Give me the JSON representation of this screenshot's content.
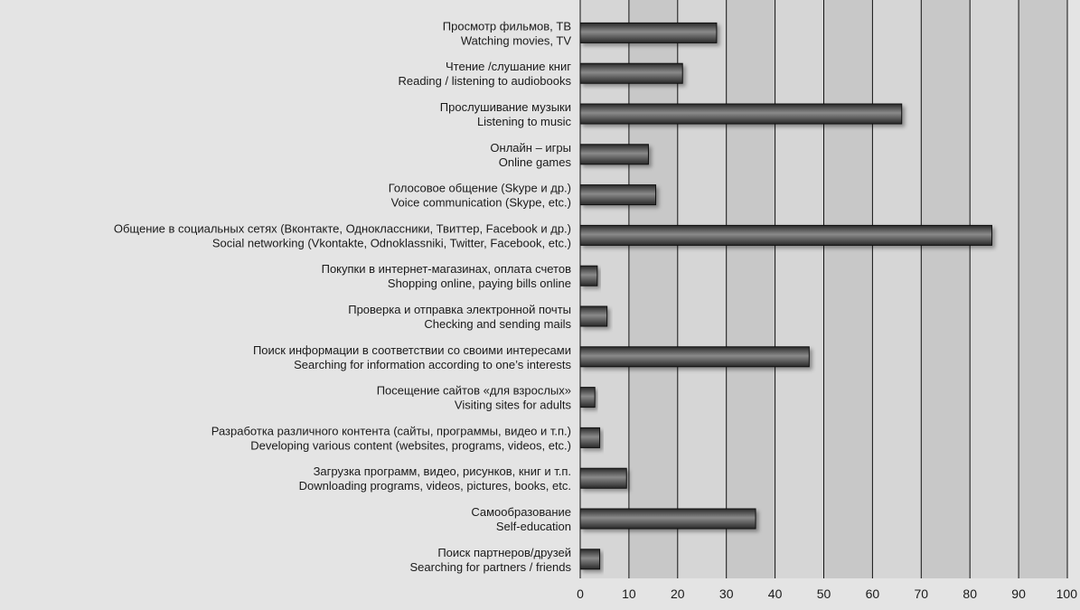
{
  "chart_data": {
    "type": "bar",
    "orientation": "horizontal",
    "categories": [
      [
        "Просмотр  фильмов, ТВ",
        "Watching movies, TV"
      ],
      [
        "Чтение /слушание книг",
        "Reading / listening to audiobooks"
      ],
      [
        "Прослушивание музыки",
        "Listening to music"
      ],
      [
        "Онлайн – игры",
        "Online games"
      ],
      [
        "Голосовое общение (Skype и др.)",
        "Voice communication (Skype, etc.)"
      ],
      [
        "Общение в социальных сетях (Вконтакте, Одноклассники, Твиттер, Facebook и др.)",
        "Social networking (Vkontakte, Odnoklassniki, Twitter, Facebook, etc.)"
      ],
      [
        "Покупки в интернет-магазинах, оплата счетов",
        "Shopping online, paying bills online"
      ],
      [
        "Проверка и отправка электронной почты",
        "Checking and sending mails"
      ],
      [
        "Поиск информации в соответствии со своими интересами",
        "Searching for information according to one’s interests"
      ],
      [
        "Посещение сайтов «для взрослых»",
        "Visiting sites for adults"
      ],
      [
        "Разработка различного контента (сайты, программы, видео и т.п.)",
        "Developing various content (websites, programs, videos, etc.)"
      ],
      [
        "Загрузка программ, видео, рисунков, книг и т.п.",
        "Downloading programs, videos, pictures, books, etc."
      ],
      [
        "Самообразование",
        "Self-education"
      ],
      [
        "Поиск партнеров/друзей",
        "Searching for partners / friends"
      ]
    ],
    "values": [
      28,
      21,
      66,
      14,
      15.5,
      84.5,
      3.5,
      5.5,
      47,
      3,
      4,
      9.5,
      36,
      4
    ],
    "xlim": [
      0,
      100
    ],
    "xticks": [
      "0",
      "10",
      "20",
      "30",
      "40",
      "50",
      "60",
      "70",
      "80",
      "90",
      "100"
    ],
    "grid": true,
    "colors": {
      "background": "#e4e4e4",
      "plot_light": "#d6d6d6",
      "plot_dark": "#c8c8c8",
      "bar_dark": "#2a2a2a",
      "bar_light": "#8a8a8a",
      "gridline": "#111111"
    }
  }
}
